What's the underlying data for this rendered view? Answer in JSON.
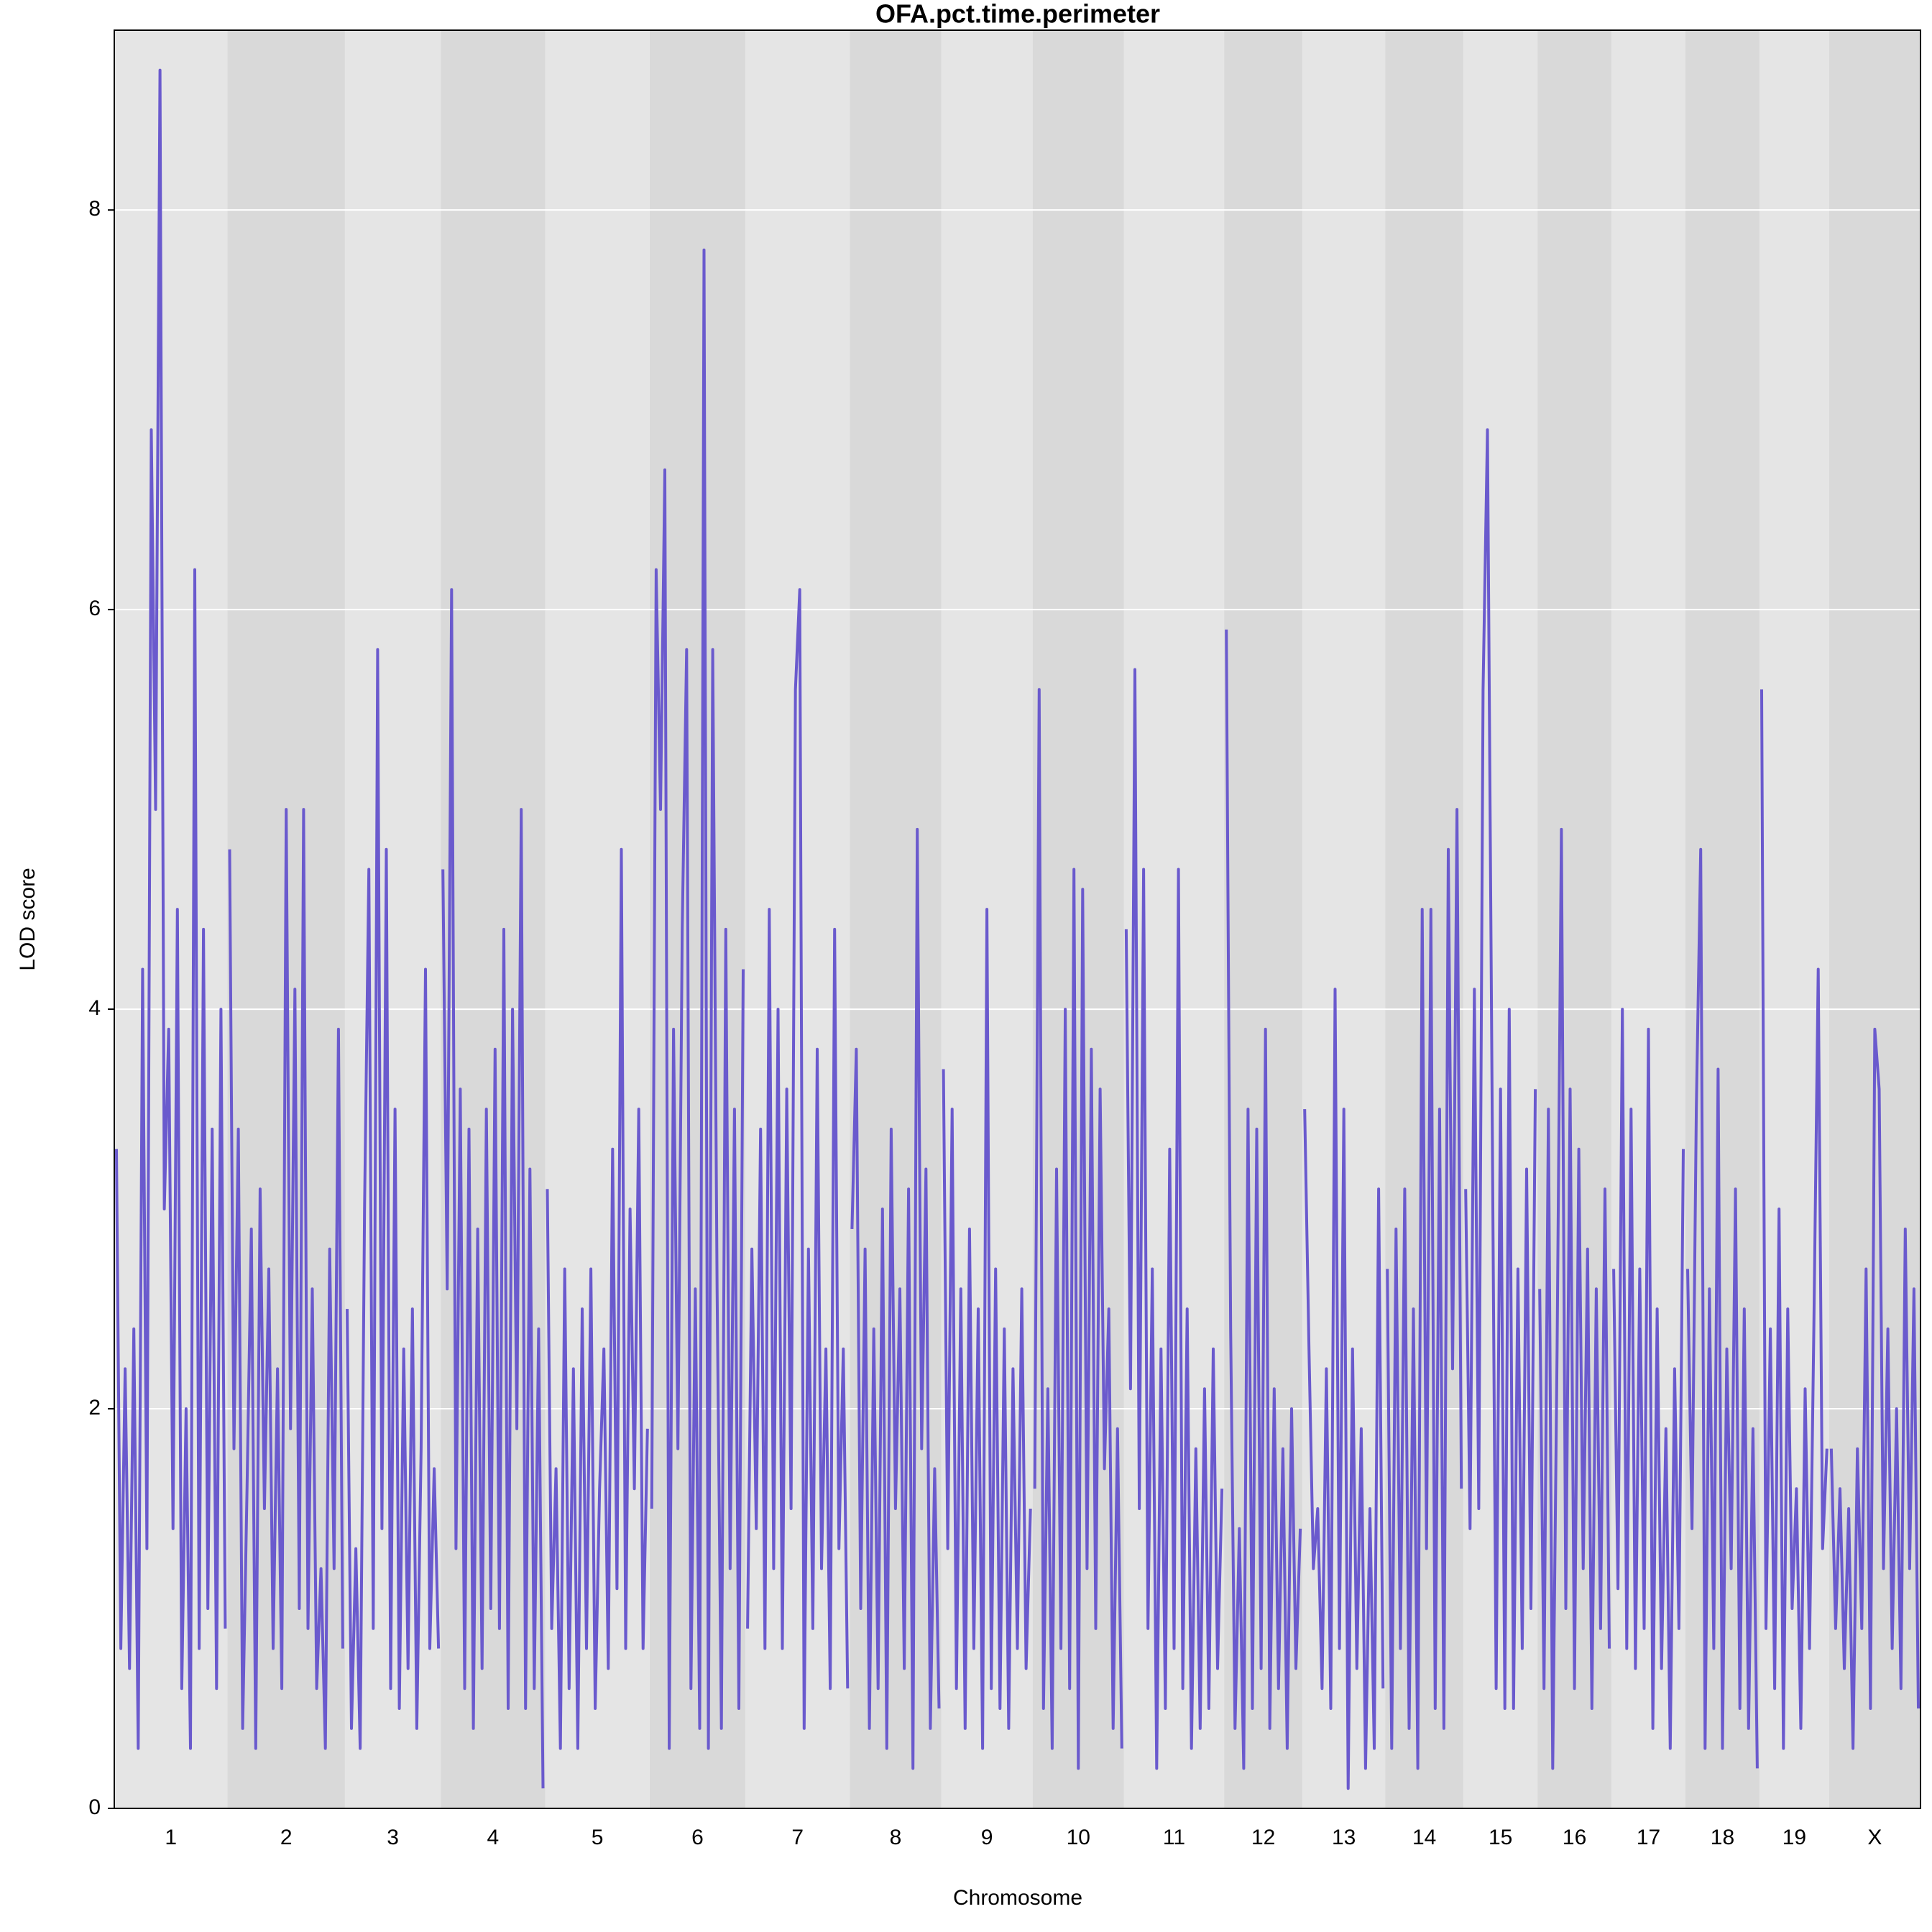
{
  "chart_data": {
    "type": "line",
    "title": "OFA.pct.time.perimeter",
    "xlabel": "Chromosome",
    "ylabel": "LOD score",
    "color": "#6a5acd",
    "ylim": [
      0,
      8.9
    ],
    "yticks": [
      0,
      2,
      4,
      6,
      8
    ],
    "grid": true,
    "chromosomes": [
      {
        "name": "1",
        "values": [
          3.3,
          0.8,
          2.2,
          0.7,
          2.4,
          0.3,
          4.2,
          1.3,
          6.9,
          5.0,
          8.7,
          3.0,
          3.9,
          1.4,
          4.5,
          0.6,
          2.0,
          0.3,
          6.2,
          0.8,
          4.4,
          1.0,
          3.4,
          0.6,
          4.0,
          0.9
        ]
      },
      {
        "name": "2",
        "values": [
          4.8,
          1.8,
          3.4,
          0.4,
          1.6,
          2.9,
          0.3,
          3.1,
          1.5,
          2.7,
          0.8,
          2.2,
          0.6,
          5.0,
          1.9,
          4.1,
          1.0,
          5.0,
          0.9,
          2.6,
          0.6,
          1.2,
          0.3,
          2.8,
          1.2,
          3.9,
          0.8
        ]
      },
      {
        "name": "3",
        "values": [
          2.5,
          0.4,
          1.3,
          0.3,
          3.0,
          4.7,
          0.9,
          5.8,
          1.4,
          4.8,
          0.6,
          3.5,
          0.5,
          2.3,
          0.7,
          2.5,
          0.4,
          1.8,
          4.2,
          0.8,
          1.7,
          0.8
        ]
      },
      {
        "name": "4",
        "values": [
          4.7,
          2.6,
          6.1,
          1.3,
          3.6,
          0.6,
          3.4,
          0.4,
          2.9,
          0.7,
          3.5,
          1.0,
          3.8,
          0.9,
          4.4,
          0.5,
          4.0,
          1.9,
          5.0,
          0.5,
          3.2,
          0.6,
          2.4,
          0.1
        ]
      },
      {
        "name": "5",
        "values": [
          3.1,
          0.9,
          1.7,
          0.3,
          2.7,
          0.6,
          2.2,
          0.3,
          2.5,
          0.8,
          2.7,
          0.5,
          1.6,
          2.3,
          0.7,
          3.3,
          1.1,
          4.8,
          0.8,
          3.0,
          1.6,
          3.5,
          0.8,
          1.9
        ]
      },
      {
        "name": "6",
        "values": [
          1.5,
          6.2,
          5.0,
          6.7,
          0.3,
          3.9,
          1.8,
          4.4,
          5.8,
          0.6,
          2.6,
          0.4,
          7.8,
          0.3,
          5.8,
          2.6,
          0.4,
          4.4,
          1.2,
          3.5,
          0.5,
          4.2
        ]
      },
      {
        "name": "7",
        "values": [
          0.9,
          2.8,
          1.4,
          3.4,
          0.8,
          4.5,
          1.2,
          4.0,
          0.8,
          3.6,
          1.5,
          5.6,
          6.1,
          0.4,
          2.8,
          0.9,
          3.8,
          1.2,
          2.3,
          0.6,
          4.4,
          1.3,
          2.3,
          0.6
        ]
      },
      {
        "name": "8",
        "values": [
          2.9,
          3.8,
          1.0,
          2.8,
          0.4,
          2.4,
          0.6,
          3.0,
          0.3,
          3.4,
          1.5,
          2.6,
          0.7,
          3.1,
          0.2,
          4.9,
          1.8,
          3.2,
          0.4,
          1.7,
          0.5
        ]
      },
      {
        "name": "9",
        "values": [
          3.7,
          1.3,
          3.5,
          0.6,
          2.6,
          0.4,
          2.9,
          0.8,
          2.5,
          0.3,
          4.5,
          0.6,
          2.7,
          0.5,
          2.4,
          0.4,
          2.2,
          0.8,
          2.6,
          0.7,
          1.5
        ]
      },
      {
        "name": "10",
        "values": [
          1.6,
          5.6,
          0.5,
          2.1,
          0.3,
          3.2,
          0.8,
          4.0,
          0.6,
          4.7,
          0.2,
          4.6,
          1.2,
          3.8,
          0.9,
          3.6,
          1.7,
          2.5,
          0.4,
          1.9,
          0.3
        ]
      },
      {
        "name": "11",
        "values": [
          4.4,
          2.1,
          5.7,
          1.5,
          4.7,
          0.9,
          2.7,
          0.2,
          2.3,
          0.5,
          3.3,
          0.8,
          4.7,
          0.6,
          2.5,
          0.3,
          1.8,
          0.4,
          2.1,
          0.5,
          2.3,
          0.7,
          1.6
        ]
      },
      {
        "name": "12",
        "values": [
          5.9,
          2.4,
          0.4,
          1.4,
          0.2,
          3.5,
          0.5,
          3.4,
          0.7,
          3.9,
          0.4,
          2.1,
          0.6,
          1.8,
          0.3,
          2.0,
          0.7,
          1.4
        ]
      },
      {
        "name": "13",
        "values": [
          3.5,
          2.3,
          1.2,
          1.5,
          0.6,
          2.2,
          0.5,
          4.1,
          0.8,
          3.5,
          0.1,
          2.3,
          0.7,
          1.9,
          0.2,
          1.5,
          0.3,
          3.1,
          0.6
        ]
      },
      {
        "name": "14",
        "values": [
          2.7,
          0.3,
          2.9,
          0.8,
          3.1,
          0.4,
          2.5,
          0.2,
          4.5,
          1.3,
          4.5,
          0.5,
          3.5,
          0.4,
          4.8,
          2.2,
          5.0,
          1.6
        ]
      },
      {
        "name": "15",
        "values": [
          3.1,
          1.4,
          4.1,
          1.5,
          5.6,
          6.9,
          3.8,
          0.6,
          3.6,
          0.5,
          4.0,
          0.5,
          2.7,
          0.8,
          3.2,
          1.0,
          3.6
        ]
      },
      {
        "name": "16",
        "values": [
          2.6,
          0.6,
          3.5,
          0.2,
          2.3,
          4.9,
          1.0,
          3.6,
          0.6,
          3.3,
          1.2,
          2.8,
          0.5,
          2.6,
          0.9,
          3.1,
          0.8
        ]
      },
      {
        "name": "17",
        "values": [
          2.7,
          1.1,
          4.0,
          0.8,
          3.5,
          0.7,
          2.7,
          0.9,
          3.9,
          0.4,
          2.5,
          0.7,
          1.9,
          0.3,
          2.2,
          0.9,
          3.3
        ]
      },
      {
        "name": "18",
        "values": [
          2.7,
          1.4,
          3.5,
          4.8,
          0.3,
          2.6,
          0.8,
          3.7,
          0.3,
          2.3,
          1.2,
          3.1,
          0.5,
          2.5,
          0.4,
          1.9,
          0.2
        ]
      },
      {
        "name": "19",
        "values": [
          5.6,
          0.9,
          2.4,
          0.6,
          3.0,
          0.3,
          2.5,
          1.0,
          1.6,
          0.4,
          2.1,
          0.8,
          2.4,
          4.2,
          1.3,
          1.8
        ]
      },
      {
        "name": "X",
        "values": [
          1.8,
          0.9,
          1.6,
          0.7,
          1.5,
          0.3,
          1.8,
          0.9,
          2.7,
          0.5,
          3.9,
          3.6,
          1.2,
          2.4,
          0.8,
          2.0,
          0.6,
          2.9,
          1.2,
          2.6,
          0.5
        ]
      }
    ]
  }
}
